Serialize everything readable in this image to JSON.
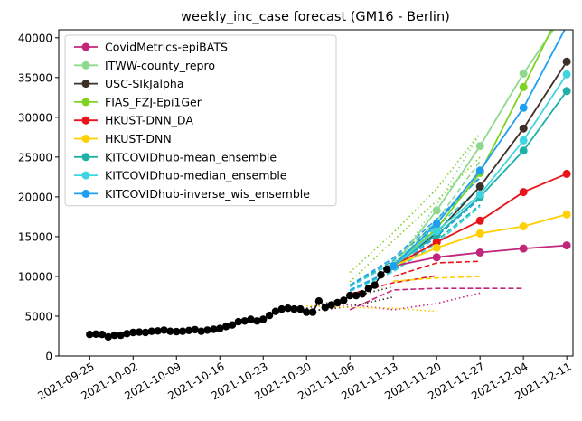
{
  "chart_data": {
    "type": "line",
    "title": "weekly_inc_case forecast (GM16 - Berlin)",
    "xlabel": "",
    "ylabel": "",
    "xlim": [
      "2021-09-20",
      "2021-12-12"
    ],
    "ylim": [
      0,
      41000
    ],
    "x_ticks": [
      "2021-09-25",
      "2021-10-02",
      "2021-10-09",
      "2021-10-16",
      "2021-10-23",
      "2021-10-30",
      "2021-11-06",
      "2021-11-13",
      "2021-11-20",
      "2021-11-27",
      "2021-12-04",
      "2021-12-11"
    ],
    "y_ticks": [
      0,
      5000,
      10000,
      15000,
      20000,
      25000,
      30000,
      35000,
      40000
    ],
    "legend_position": "upper-left",
    "grid": false,
    "truth": {
      "color": "#000000",
      "points": [
        [
          "2021-09-25",
          2700
        ],
        [
          "2021-09-26",
          2750
        ],
        [
          "2021-09-27",
          2700
        ],
        [
          "2021-09-28",
          2400
        ],
        [
          "2021-09-29",
          2600
        ],
        [
          "2021-09-30",
          2600
        ],
        [
          "2021-10-01",
          2800
        ],
        [
          "2021-10-02",
          2950
        ],
        [
          "2021-10-03",
          3000
        ],
        [
          "2021-10-04",
          2950
        ],
        [
          "2021-10-05",
          3100
        ],
        [
          "2021-10-06",
          3150
        ],
        [
          "2021-10-07",
          3250
        ],
        [
          "2021-10-08",
          3100
        ],
        [
          "2021-10-09",
          3050
        ],
        [
          "2021-10-10",
          3100
        ],
        [
          "2021-10-11",
          3200
        ],
        [
          "2021-10-12",
          3300
        ],
        [
          "2021-10-13",
          3100
        ],
        [
          "2021-10-14",
          3250
        ],
        [
          "2021-10-15",
          3350
        ],
        [
          "2021-10-16",
          3450
        ],
        [
          "2021-10-17",
          3700
        ],
        [
          "2021-10-18",
          3900
        ],
        [
          "2021-10-19",
          4300
        ],
        [
          "2021-10-20",
          4400
        ],
        [
          "2021-10-21",
          4600
        ],
        [
          "2021-10-22",
          4400
        ],
        [
          "2021-10-23",
          4600
        ],
        [
          "2021-10-24",
          5100
        ],
        [
          "2021-10-25",
          5600
        ],
        [
          "2021-10-26",
          5900
        ],
        [
          "2021-10-27",
          6000
        ],
        [
          "2021-10-28",
          5900
        ],
        [
          "2021-10-29",
          5900
        ],
        [
          "2021-10-30",
          5500
        ],
        [
          "2021-10-31",
          5500
        ],
        [
          "2021-11-01",
          6900
        ],
        [
          "2021-11-02",
          6100
        ],
        [
          "2021-11-03",
          6400
        ],
        [
          "2021-11-04",
          6700
        ],
        [
          "2021-11-05",
          7000
        ],
        [
          "2021-11-06",
          7600
        ],
        [
          "2021-11-07",
          7600
        ],
        [
          "2021-11-08",
          7800
        ],
        [
          "2021-11-09",
          8500
        ],
        [
          "2021-11-10",
          8900
        ],
        [
          "2021-11-11",
          10200
        ],
        [
          "2021-11-12",
          10900
        ],
        [
          "2021-11-13",
          11300
        ]
      ]
    },
    "series": [
      {
        "name": "CovidMetrics-epiBATS",
        "color": "#c1267a",
        "median": [
          [
            "2021-11-13",
            11300
          ],
          [
            "2021-11-20",
            12400
          ],
          [
            "2021-11-27",
            13000
          ],
          [
            "2021-12-04",
            13500
          ],
          [
            "2021-12-11",
            13900
          ]
        ],
        "lower": [
          [
            "2021-11-06",
            5800
          ],
          [
            "2021-11-13",
            8300
          ],
          [
            "2021-11-20",
            8500
          ],
          [
            "2021-11-27",
            8500
          ],
          [
            "2021-12-04",
            8500
          ]
        ],
        "upper": [
          [
            "2021-10-30",
            5500
          ],
          [
            "2021-11-06",
            6500
          ],
          [
            "2021-11-13",
            5800
          ],
          [
            "2021-11-20",
            6600
          ],
          [
            "2021-11-27",
            7900
          ]
        ],
        "lower_style": "dashed",
        "upper_style": "dotted"
      },
      {
        "name": "ITWW-county_repro",
        "color": "#8fd98f",
        "median": [
          [
            "2021-11-13",
            11300
          ],
          [
            "2021-11-20",
            18300
          ],
          [
            "2021-11-27",
            26400
          ],
          [
            "2021-12-04",
            35500
          ],
          [
            "2021-12-11",
            43500
          ]
        ],
        "lower": [
          [
            "2021-11-13",
            11300
          ],
          [
            "2021-11-20",
            17000
          ],
          [
            "2021-11-27",
            24500
          ]
        ],
        "upper": [
          [
            "2021-11-13",
            11300
          ],
          [
            "2021-11-20",
            19000
          ],
          [
            "2021-11-27",
            28000
          ]
        ],
        "lower_style": "dashed",
        "upper_style": "dotted"
      },
      {
        "name": "USC-SIkJalpha",
        "color": "#3d3028",
        "median": [
          [
            "2021-11-13",
            11300
          ],
          [
            "2021-11-20",
            15500
          ],
          [
            "2021-11-27",
            21300
          ],
          [
            "2021-12-04",
            28600
          ],
          [
            "2021-12-11",
            37000
          ]
        ],
        "lower": [
          [
            "2021-10-30",
            5600
          ],
          [
            "2021-11-06",
            6200
          ],
          [
            "2021-11-13",
            7400
          ]
        ],
        "upper": [
          [
            "2021-10-30",
            6000
          ],
          [
            "2021-11-06",
            7400
          ],
          [
            "2021-11-13",
            8700
          ]
        ],
        "lower_style": "dotted",
        "upper_style": "dotted"
      },
      {
        "name": "FIAS_FZJ-Epi1Ger",
        "color": "#7ed321",
        "median": [
          [
            "2021-11-13",
            11300
          ],
          [
            "2021-11-20",
            16000
          ],
          [
            "2021-11-27",
            23000
          ],
          [
            "2021-12-04",
            33800
          ],
          [
            "2021-12-11",
            45000
          ]
        ],
        "lower": [
          [
            "2021-11-06",
            9300
          ],
          [
            "2021-11-13",
            14500
          ],
          [
            "2021-11-20",
            19500
          ],
          [
            "2021-11-27",
            25000
          ]
        ],
        "upper": [
          [
            "2021-11-06",
            10500
          ],
          [
            "2021-11-13",
            15500
          ],
          [
            "2021-11-20",
            21000
          ],
          [
            "2021-11-27",
            28000
          ]
        ],
        "lower_style": "dotted",
        "upper_style": "dotted"
      },
      {
        "name": "HKUST-DNN_DA",
        "color": "#e8141a",
        "median": [
          [
            "2021-11-13",
            11300
          ],
          [
            "2021-11-20",
            14300
          ],
          [
            "2021-11-27",
            17000
          ],
          [
            "2021-12-04",
            20600
          ],
          [
            "2021-12-11",
            22900
          ]
        ],
        "lower": [
          [
            "2021-11-06",
            7800
          ],
          [
            "2021-11-13",
            9200
          ],
          [
            "2021-11-20",
            10100
          ]
        ],
        "upper": [
          [
            "2021-11-13",
            10000
          ],
          [
            "2021-11-20",
            11700
          ],
          [
            "2021-11-27",
            11900
          ]
        ],
        "lower_style": "dashed",
        "upper_style": "dashed"
      },
      {
        "name": "HKUST-DNN",
        "color": "#ffd000",
        "median": [
          [
            "2021-11-13",
            11300
          ],
          [
            "2021-11-20",
            13600
          ],
          [
            "2021-11-27",
            15400
          ],
          [
            "2021-12-04",
            16300
          ],
          [
            "2021-12-11",
            17800
          ]
        ],
        "lower": [
          [
            "2021-10-30",
            6300
          ],
          [
            "2021-11-06",
            6100
          ],
          [
            "2021-11-13",
            6000
          ],
          [
            "2021-11-20",
            5600
          ]
        ],
        "upper": [
          [
            "2021-11-13",
            9400
          ],
          [
            "2021-11-20",
            9800
          ],
          [
            "2021-11-27",
            10000
          ]
        ],
        "lower_style": "dotted",
        "upper_style": "dashed"
      },
      {
        "name": "KITCOVIDhub-mean_ensemble",
        "color": "#1fb0a8",
        "median": [
          [
            "2021-11-13",
            11300
          ],
          [
            "2021-11-20",
            15200
          ],
          [
            "2021-11-27",
            20000
          ],
          [
            "2021-12-04",
            25800
          ],
          [
            "2021-12-11",
            33300
          ]
        ],
        "lower": [
          [
            "2021-11-06",
            8200
          ],
          [
            "2021-11-13",
            10700
          ],
          [
            "2021-11-20",
            14500
          ],
          [
            "2021-11-27",
            19000
          ]
        ],
        "upper": [
          [
            "2021-11-06",
            8800
          ],
          [
            "2021-11-13",
            12000
          ],
          [
            "2021-11-20",
            16800
          ],
          [
            "2021-11-27",
            22500
          ]
        ],
        "lower_style": "dashed",
        "upper_style": "dashed"
      },
      {
        "name": "KITCOVIDhub-median_ensemble",
        "color": "#3fd5e0",
        "median": [
          [
            "2021-11-13",
            11300
          ],
          [
            "2021-11-20",
            15700
          ],
          [
            "2021-11-27",
            20300
          ],
          [
            "2021-12-04",
            27100
          ],
          [
            "2021-12-11",
            35400
          ]
        ],
        "lower": [
          [
            "2021-11-06",
            8100
          ],
          [
            "2021-11-13",
            10600
          ],
          [
            "2021-11-20",
            14200
          ],
          [
            "2021-11-27",
            18800
          ]
        ],
        "upper": [
          [
            "2021-11-06",
            8700
          ],
          [
            "2021-11-13",
            11700
          ],
          [
            "2021-11-20",
            16200
          ],
          [
            "2021-11-27",
            21200
          ]
        ],
        "lower_style": "dashed",
        "upper_style": "dashed"
      },
      {
        "name": "KITCOVIDhub-inverse_wis_ensemble",
        "color": "#1e9ff2",
        "median": [
          [
            "2021-11-13",
            11300
          ],
          [
            "2021-11-20",
            16600
          ],
          [
            "2021-11-27",
            23300
          ],
          [
            "2021-12-04",
            31200
          ],
          [
            "2021-12-11",
            41500
          ]
        ],
        "lower": [
          [
            "2021-11-06",
            8300
          ],
          [
            "2021-11-13",
            10900
          ],
          [
            "2021-11-20",
            15000
          ],
          [
            "2021-11-27",
            19800
          ]
        ],
        "upper": [
          [
            "2021-11-06",
            8900
          ],
          [
            "2021-11-13",
            12300
          ],
          [
            "2021-11-20",
            17200
          ],
          [
            "2021-11-27",
            22400
          ]
        ],
        "lower_style": "dashed",
        "upper_style": "dashed"
      }
    ]
  }
}
